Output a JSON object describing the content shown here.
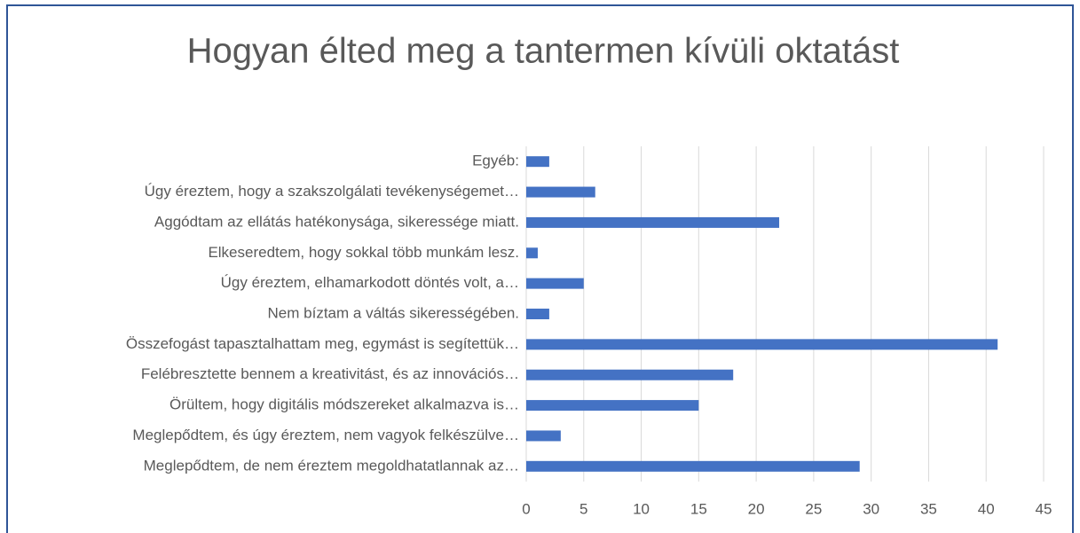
{
  "chart_data": {
    "type": "barh",
    "title": "Hogyan élted meg a tantermen kívüli oktatást",
    "categories": [
      "Egyéb:",
      "Úgy éreztem, hogy a szakszolgálati tevékenységemet…",
      "Aggódtam az ellátás hatékonysága, sikeressége miatt.",
      "Elkeseredtem, hogy sokkal több munkám lesz.",
      "Úgy éreztem, elhamarkodott döntés volt, a…",
      "Nem bíztam a váltás sikerességében.",
      "Összefogást tapasztalhattam meg, egymást is segítettük…",
      "Felébresztette bennem a kreativitást, és az innovációs…",
      "Örültem, hogy digitális módszereket alkalmazva is…",
      "Meglepődtem, és úgy éreztem, nem vagyok felkészülve…",
      "Meglepődtem, de nem éreztem megoldhatatlannak az…"
    ],
    "values": [
      2,
      6,
      22,
      1,
      5,
      2,
      41,
      18,
      15,
      3,
      29
    ],
    "color": "#4472c4",
    "xlim": [
      0,
      45
    ],
    "xticks": [
      0,
      5,
      10,
      15,
      20,
      25,
      30,
      35,
      40,
      45
    ],
    "grid": true
  }
}
